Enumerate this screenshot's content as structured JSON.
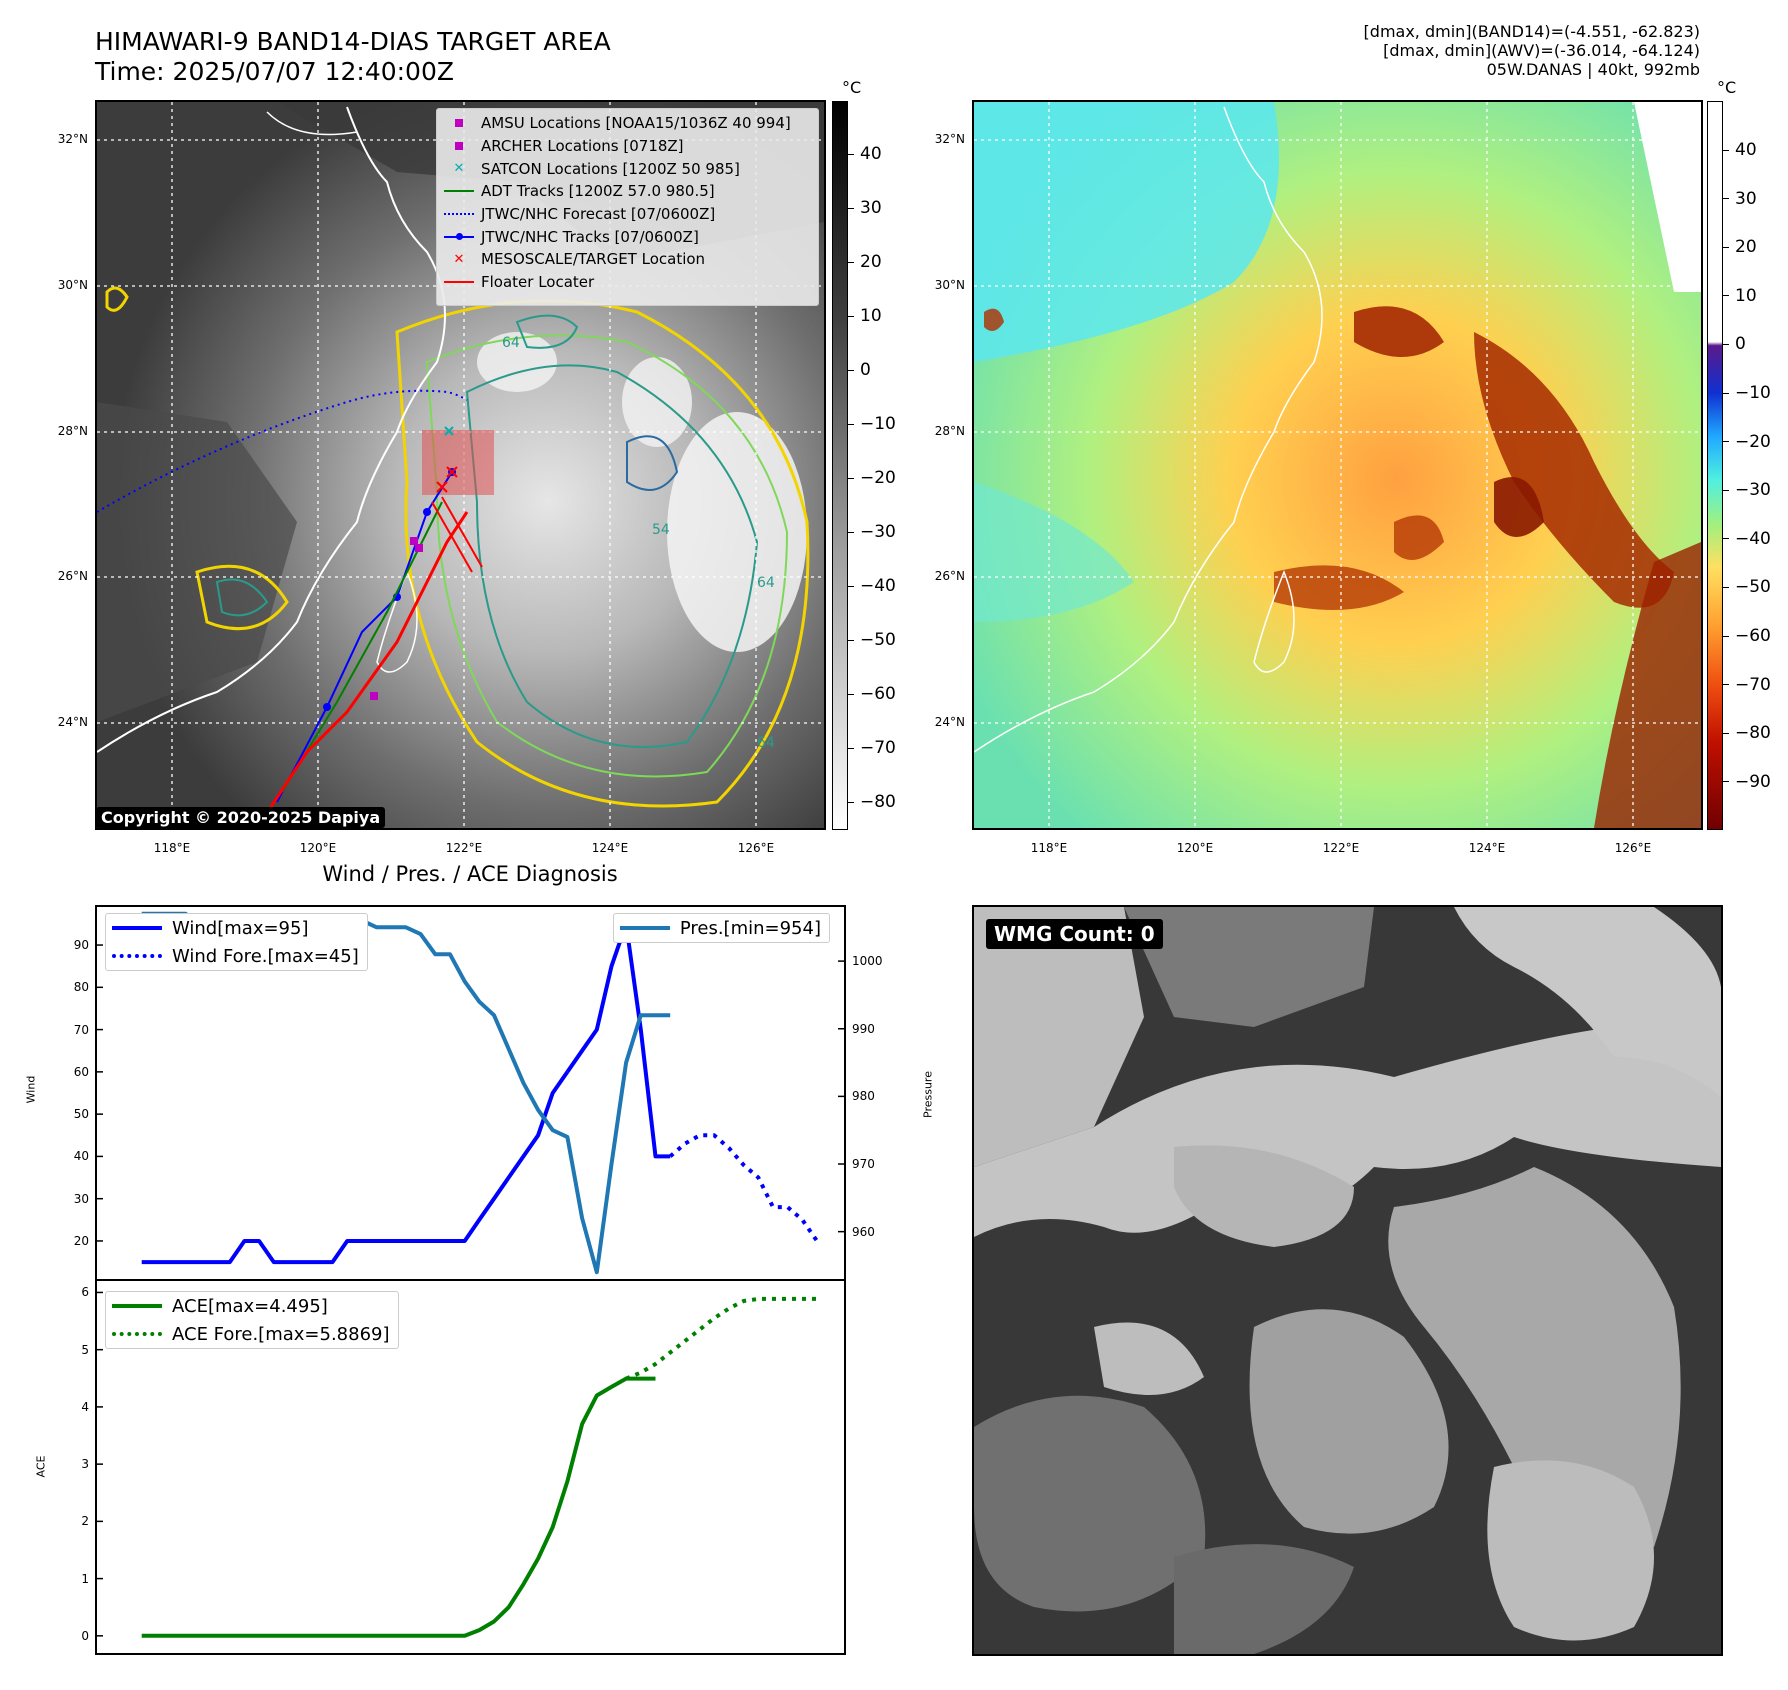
{
  "header": {
    "title_line1": "HIMAWARI-9 BAND14-DIAS TARGET AREA",
    "title_line2": "Time: 2025/07/07 12:40:00Z",
    "info_line1": "[dmax, dmin](BAND14)=(-4.551, -62.823)",
    "info_line2": "[dmax, dmin](AWV)=(-36.014, -64.124)",
    "info_line3": "05W.DANAS | 40kt, 992mb"
  },
  "map_common": {
    "lat_labels": [
      "32°N",
      "30°N",
      "28°N",
      "26°N",
      "24°N"
    ],
    "lon_labels": [
      "118°E",
      "120°E",
      "122°E",
      "124°E",
      "126°E"
    ]
  },
  "left_map": {
    "colorbar_unit": "°C",
    "colorbar_ticks": [
      "40",
      "30",
      "20",
      "10",
      "0",
      "−10",
      "−20",
      "−30",
      "−40",
      "−50",
      "−60",
      "−70",
      "−80"
    ],
    "legend": [
      {
        "symbol": "square",
        "color": "#c000c0",
        "label": "AMSU Locations [NOAA15/1036Z 40 994]"
      },
      {
        "symbol": "square",
        "color": "#c000c0",
        "label": "ARCHER Locations [0718Z]"
      },
      {
        "symbol": "x",
        "color": "#00b0b0",
        "label": "SATCON Locations [1200Z 50 985]"
      },
      {
        "symbol": "line",
        "color": "#008000",
        "label": "ADT Tracks [1200Z 57.0 980.5]"
      },
      {
        "symbol": "dotted",
        "color": "#0000ff",
        "label": "JTWC/NHC Forecast [07/0600Z]"
      },
      {
        "symbol": "line-dot",
        "color": "#0000ff",
        "label": "JTWC/NHC Tracks [07/0600Z]"
      },
      {
        "symbol": "x",
        "color": "#ff0000",
        "label": "MESOSCALE/TARGET Location"
      },
      {
        "symbol": "line",
        "color": "#ff0000",
        "label": "Floater Locater"
      }
    ],
    "copyright": "Copyright © 2020-2025 Dapiya",
    "contour_labels": [
      "64",
      "54",
      "64",
      "64"
    ]
  },
  "right_map": {
    "colorbar_unit": "°C",
    "colorbar_ticks": [
      "40",
      "30",
      "20",
      "10",
      "0",
      "−10",
      "−20",
      "−30",
      "−40",
      "−50",
      "−60",
      "−70",
      "−80",
      "−90"
    ]
  },
  "wmg_panel": {
    "badge": "WMG Count: 0"
  },
  "chart_data": [
    {
      "type": "line",
      "title": "Wind / Pres. / ACE Diagnosis",
      "ylabel": "Wind",
      "ylabel_right": "Pressure",
      "ylim": [
        11,
        99
      ],
      "ylim_right": [
        953,
        1008
      ],
      "yticks": [
        20,
        30,
        40,
        50,
        60,
        70,
        80,
        90
      ],
      "yticks_right": [
        960,
        970,
        980,
        990,
        1000
      ],
      "xlim": [
        0,
        37
      ],
      "series": [
        {
          "name": "Wind[max=95]",
          "axis": "left",
          "style": "solid",
          "color": "#0000ff",
          "x": [
            1,
            2,
            3,
            4,
            5,
            6,
            7,
            8,
            9,
            10,
            11,
            12,
            13,
            14,
            15,
            16,
            17,
            18,
            19,
            20,
            21,
            22,
            23,
            24,
            25,
            26,
            27,
            28,
            28.5,
            29,
            30
          ],
          "y": [
            15,
            15,
            15,
            15,
            15,
            15,
            15,
            20,
            20,
            15,
            15,
            15,
            15,
            15,
            20,
            20,
            20,
            20,
            20,
            20,
            20,
            20,
            20,
            25,
            30,
            35,
            40,
            45,
            50,
            55,
            60
          ]
        },
        {
          "name": "Wind[max=95]",
          "axis": "left",
          "style": "solid",
          "color": "#0000ff",
          "x": [
            30,
            31,
            32,
            33,
            34,
            35,
            36,
            37
          ],
          "y": [
            60,
            65,
            70,
            85,
            95,
            70,
            40,
            40
          ]
        },
        {
          "name": "Wind Fore.[max=45]",
          "axis": "left",
          "style": "dotted",
          "color": "#0000ff",
          "x": [
            37,
            38,
            39,
            40,
            41,
            42,
            43,
            44,
            45,
            46,
            47
          ],
          "y": [
            40,
            43,
            45,
            45,
            42,
            38,
            35,
            28,
            28,
            25,
            20
          ]
        },
        {
          "name": "Pres.[min=954]",
          "axis": "right",
          "style": "solid",
          "color": "#1f77b4",
          "x": [
            1,
            2,
            3,
            4,
            5,
            6,
            7,
            8,
            9,
            10,
            11,
            12,
            13,
            14,
            15,
            16,
            17,
            18,
            19,
            20,
            21,
            22,
            23,
            24,
            25,
            26,
            27,
            28,
            29,
            30,
            31,
            32,
            33,
            34,
            35,
            36,
            37
          ],
          "y": [
            1007,
            1007,
            1007,
            1007,
            1005,
            1005,
            1005,
            1005,
            1005,
            1006,
            1006,
            1006,
            1005,
            1006,
            1006,
            1006,
            1005,
            1005,
            1005,
            1004,
            1001,
            1001,
            997,
            994,
            992,
            987,
            982,
            978,
            975,
            974,
            962,
            954,
            970,
            985,
            992,
            992,
            992
          ]
        }
      ],
      "legend": [
        {
          "label": "Wind[max=95]",
          "style": "solid",
          "color": "#0000ff"
        },
        {
          "label": "Wind Fore.[max=45]",
          "style": "dotted",
          "color": "#0000ff"
        }
      ],
      "legend_right": [
        {
          "label": "Pres.[min=954]",
          "style": "solid",
          "color": "#1f77b4"
        }
      ]
    },
    {
      "type": "line",
      "ylabel": "ACE",
      "ylim": [
        -0.3,
        6.2
      ],
      "yticks": [
        0,
        1,
        2,
        3,
        4,
        5,
        6
      ],
      "series": [
        {
          "name": "ACE[max=4.495]",
          "style": "solid",
          "color": "#008000",
          "x": [
            1,
            23,
            24,
            25,
            26,
            27,
            28,
            29,
            30,
            31,
            32,
            33,
            34,
            35,
            36
          ],
          "y": [
            0,
            0,
            0.1,
            0.25,
            0.5,
            0.9,
            1.35,
            1.9,
            2.7,
            3.7,
            4.2,
            4.35,
            4.495,
            4.495,
            4.495
          ]
        },
        {
          "name": "ACE Fore.[max=5.8869]",
          "style": "dotted",
          "color": "#008000",
          "x": [
            34,
            35,
            36,
            37,
            38,
            39,
            40,
            41,
            42,
            43,
            44,
            45,
            46,
            47
          ],
          "y": [
            4.495,
            4.6,
            4.75,
            4.95,
            5.15,
            5.35,
            5.55,
            5.72,
            5.85,
            5.8869,
            5.8869,
            5.8869,
            5.8869,
            5.8869
          ]
        }
      ],
      "legend": [
        {
          "label": "ACE[max=4.495]",
          "style": "solid",
          "color": "#008000"
        },
        {
          "label": "ACE Fore.[max=5.8869]",
          "style": "dotted",
          "color": "#008000"
        }
      ]
    }
  ]
}
